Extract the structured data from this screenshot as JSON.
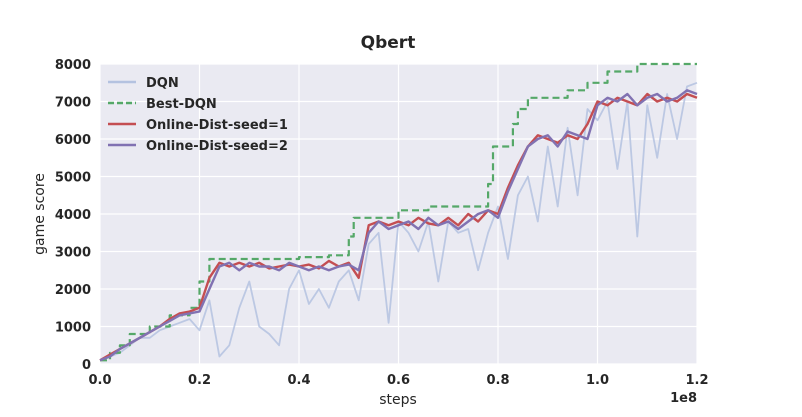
{
  "chart_data": {
    "type": "line",
    "title": "Qbert",
    "xlabel": "steps",
    "ylabel": "game score",
    "x_offset_label": "1e8",
    "xlim": [
      0,
      1.2
    ],
    "ylim": [
      0,
      8000
    ],
    "xticks": [
      "0.0",
      "0.2",
      "0.4",
      "0.6",
      "0.8",
      "1.0",
      "1.2"
    ],
    "yticks": [
      "0",
      "1000",
      "2000",
      "3000",
      "4000",
      "5000",
      "6000",
      "7000",
      "8000"
    ],
    "grid": true,
    "legend_position": "top-left",
    "series": [
      {
        "name": "DQN",
        "color": "#b4c2e0",
        "style": "solid",
        "x": [
          0.0,
          0.02,
          0.04,
          0.06,
          0.08,
          0.1,
          0.12,
          0.14,
          0.16,
          0.18,
          0.2,
          0.22,
          0.24,
          0.26,
          0.28,
          0.3,
          0.32,
          0.34,
          0.36,
          0.38,
          0.4,
          0.42,
          0.44,
          0.46,
          0.48,
          0.5,
          0.52,
          0.54,
          0.56,
          0.58,
          0.6,
          0.62,
          0.64,
          0.66,
          0.68,
          0.7,
          0.72,
          0.74,
          0.76,
          0.78,
          0.8,
          0.82,
          0.84,
          0.86,
          0.88,
          0.9,
          0.92,
          0.94,
          0.96,
          0.98,
          1.0,
          1.02,
          1.04,
          1.06,
          1.08,
          1.1,
          1.12,
          1.14,
          1.16,
          1.18,
          1.2
        ],
        "values": [
          100,
          200,
          300,
          500,
          700,
          700,
          900,
          1000,
          1100,
          1200,
          900,
          1700,
          200,
          500,
          1500,
          2200,
          1000,
          800,
          500,
          2000,
          2500,
          1600,
          2000,
          1500,
          2200,
          2500,
          1700,
          3200,
          3500,
          1100,
          3800,
          3500,
          3000,
          3800,
          2200,
          3800,
          3500,
          3600,
          2500,
          3500,
          4200,
          2800,
          4500,
          5000,
          3800,
          5800,
          4200,
          6300,
          4500,
          6800,
          6500,
          7000,
          5200,
          7000,
          3400,
          6900,
          5500,
          7200,
          6000,
          7400,
          7500
        ]
      },
      {
        "name": "Best-DQN",
        "color": "#55a868",
        "style": "dashed",
        "x": [
          0.0,
          0.02,
          0.02,
          0.04,
          0.04,
          0.06,
          0.06,
          0.1,
          0.1,
          0.14,
          0.14,
          0.18,
          0.18,
          0.2,
          0.2,
          0.22,
          0.22,
          0.4,
          0.4,
          0.46,
          0.46,
          0.5,
          0.5,
          0.51,
          0.51,
          0.6,
          0.6,
          0.66,
          0.66,
          0.78,
          0.78,
          0.79,
          0.79,
          0.83,
          0.83,
          0.84,
          0.84,
          0.86,
          0.86,
          0.94,
          0.94,
          0.98,
          0.98,
          1.02,
          1.02,
          1.08,
          1.08,
          1.2
        ],
        "values": [
          100,
          100,
          300,
          300,
          500,
          500,
          800,
          800,
          1000,
          1000,
          1300,
          1300,
          1500,
          1500,
          2200,
          2200,
          2800,
          2800,
          2850,
          2850,
          2900,
          2900,
          3400,
          3400,
          3900,
          3900,
          4100,
          4100,
          4200,
          4200,
          4800,
          4800,
          5800,
          5800,
          6400,
          6400,
          6800,
          6800,
          7100,
          7100,
          7300,
          7300,
          7500,
          7500,
          7800,
          7800,
          8000,
          8000
        ]
      },
      {
        "name": "Online-Dist-seed=1",
        "color": "#c44e52",
        "style": "solid",
        "x": [
          0.0,
          0.02,
          0.04,
          0.06,
          0.08,
          0.1,
          0.12,
          0.14,
          0.16,
          0.18,
          0.2,
          0.22,
          0.24,
          0.26,
          0.28,
          0.3,
          0.32,
          0.34,
          0.36,
          0.38,
          0.4,
          0.42,
          0.44,
          0.46,
          0.48,
          0.5,
          0.52,
          0.54,
          0.56,
          0.58,
          0.6,
          0.62,
          0.64,
          0.66,
          0.68,
          0.7,
          0.72,
          0.74,
          0.76,
          0.78,
          0.8,
          0.82,
          0.84,
          0.86,
          0.88,
          0.9,
          0.92,
          0.94,
          0.96,
          0.98,
          1.0,
          1.02,
          1.04,
          1.06,
          1.08,
          1.1,
          1.12,
          1.14,
          1.16,
          1.18,
          1.2
        ],
        "values": [
          100,
          250,
          400,
          550,
          700,
          850,
          1000,
          1200,
          1350,
          1400,
          1500,
          2300,
          2700,
          2600,
          2700,
          2600,
          2700,
          2550,
          2600,
          2650,
          2600,
          2650,
          2550,
          2750,
          2600,
          2700,
          2300,
          3700,
          3800,
          3700,
          3800,
          3700,
          3900,
          3750,
          3700,
          3900,
          3700,
          4000,
          3800,
          4100,
          4000,
          4700,
          5300,
          5800,
          6100,
          6000,
          5900,
          6100,
          6000,
          6400,
          7000,
          6900,
          7100,
          7000,
          6900,
          7200,
          7000,
          7100,
          7000,
          7200,
          7100
        ]
      },
      {
        "name": "Online-Dist-seed=2",
        "color": "#8172b2",
        "style": "solid",
        "x": [
          0.0,
          0.02,
          0.04,
          0.06,
          0.08,
          0.1,
          0.12,
          0.14,
          0.16,
          0.18,
          0.2,
          0.22,
          0.24,
          0.26,
          0.28,
          0.3,
          0.32,
          0.34,
          0.36,
          0.38,
          0.4,
          0.42,
          0.44,
          0.46,
          0.48,
          0.5,
          0.52,
          0.54,
          0.56,
          0.58,
          0.6,
          0.62,
          0.64,
          0.66,
          0.68,
          0.7,
          0.72,
          0.74,
          0.76,
          0.78,
          0.8,
          0.82,
          0.84,
          0.86,
          0.88,
          0.9,
          0.92,
          0.94,
          0.96,
          0.98,
          1.0,
          1.02,
          1.04,
          1.06,
          1.08,
          1.1,
          1.12,
          1.14,
          1.16,
          1.18,
          1.2
        ],
        "values": [
          100,
          200,
          400,
          550,
          700,
          850,
          1000,
          1150,
          1300,
          1350,
          1400,
          2000,
          2600,
          2700,
          2500,
          2700,
          2600,
          2600,
          2500,
          2700,
          2600,
          2500,
          2600,
          2500,
          2600,
          2650,
          2500,
          3500,
          3800,
          3600,
          3700,
          3800,
          3600,
          3900,
          3700,
          3800,
          3600,
          3800,
          4000,
          4100,
          3900,
          4600,
          5200,
          5800,
          6000,
          6100,
          5800,
          6200,
          6100,
          6000,
          6900,
          7100,
          7000,
          7200,
          6900,
          7100,
          7200,
          7000,
          7100,
          7300,
          7200
        ]
      }
    ]
  }
}
